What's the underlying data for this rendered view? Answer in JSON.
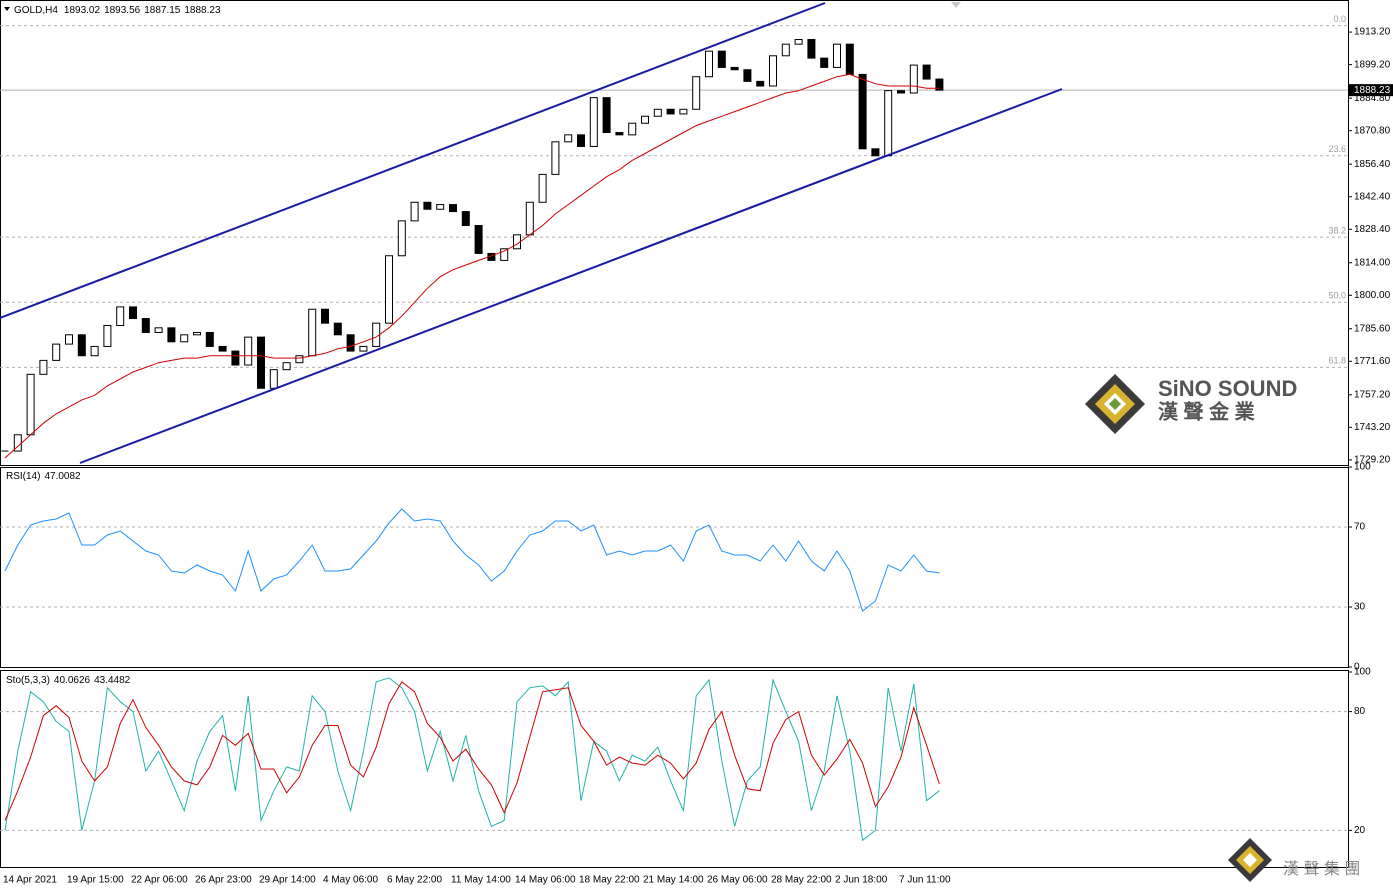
{
  "chart_data": [
    {
      "type": "candlestick",
      "symbol": "GOLD,H4",
      "ohlc": [
        1893.02,
        1893.56,
        1887.15,
        1888.23
      ],
      "color": "#000000",
      "ma_color": "#d00000",
      "values": [
        1733,
        1740,
        1766,
        1772,
        1779,
        1783,
        1774,
        1778,
        1787,
        1795,
        1790,
        1784,
        1786,
        1780,
        1783,
        1784,
        1778,
        1776,
        1770,
        1782,
        1760,
        1768,
        1771,
        1774,
        1794,
        1788,
        1783,
        1776,
        1778,
        1788,
        1817,
        1832,
        1840,
        1837,
        1839,
        1836,
        1830,
        1818,
        1815,
        1820,
        1826,
        1840,
        1852,
        1866,
        1869,
        1864,
        1885,
        1870,
        1869,
        1874,
        1877,
        1880,
        1878,
        1880,
        1894,
        1905,
        1898,
        1897,
        1892,
        1890,
        1903,
        1908,
        1910,
        1902,
        1898,
        1908,
        1895,
        1863,
        1860,
        1888,
        1887,
        1899,
        1893,
        1888.23
      ],
      "ma_values": [
        1730,
        1735,
        1740,
        1745,
        1749,
        1752,
        1755,
        1757,
        1761,
        1764,
        1767,
        1769,
        1771,
        1772,
        1773,
        1773,
        1774,
        1774,
        1774,
        1774,
        1774,
        1773,
        1773,
        1773,
        1774,
        1775,
        1777,
        1778,
        1780,
        1782,
        1786,
        1791,
        1797,
        1803,
        1808,
        1811,
        1813,
        1815,
        1817,
        1819,
        1822,
        1826,
        1830,
        1835,
        1839,
        1843,
        1847,
        1851,
        1854,
        1858,
        1861,
        1864,
        1867,
        1870,
        1873,
        1875,
        1877,
        1879,
        1881,
        1883,
        1885,
        1887,
        1888,
        1890,
        1892,
        1894,
        1895,
        1893,
        1891,
        1890,
        1890,
        1890,
        1889,
        1889
      ],
      "ylim": [
        1727,
        1927
      ],
      "yticks": [
        {
          "value": 1729.2,
          "label": "1729.20"
        },
        {
          "value": 1743.2,
          "label": "1743.20"
        },
        {
          "value": 1757.2,
          "label": "1757.20"
        },
        {
          "value": 1771.6,
          "label": "1771.60"
        },
        {
          "value": 1785.6,
          "label": "1785.60"
        },
        {
          "value": 1800,
          "label": "1800.00"
        },
        {
          "value": 1814,
          "label": "1814.00"
        },
        {
          "value": 1828.4,
          "label": "1828.40"
        },
        {
          "value": 1842.4,
          "label": "1842.40"
        },
        {
          "value": 1856.4,
          "label": "1856.40"
        },
        {
          "value": 1870.8,
          "label": "1870.80"
        },
        {
          "value": 1884.8,
          "label": "1884.80"
        },
        {
          "value": 1899.2,
          "label": "1899.20"
        },
        {
          "value": 1913.2,
          "label": "1913.20"
        }
      ],
      "fib_levels": [
        {
          "value": 1916,
          "label": "0.0"
        },
        {
          "value": 1860,
          "label": "23.6"
        },
        {
          "value": 1825,
          "label": "38.2"
        },
        {
          "value": 1797,
          "label": "50.0"
        },
        {
          "value": 1769,
          "label": "61.8"
        }
      ],
      "xlabels": [
        "14 Apr 2021",
        "19 Apr 15:00",
        "22 Apr 06:00",
        "26 Apr 23:00",
        "29 Apr 14:00",
        "4 May 06:00",
        "6 May 22:00",
        "11 May 14:00",
        "14 May 06:00",
        "18 May 22:00",
        "21 May 14:00",
        "26 May 06:00",
        "28 May 22:00",
        "2 Jun 18:00",
        "7 Jun 11:00"
      ]
    },
    {
      "type": "line",
      "title": "RSI(14)",
      "current": 47.0082,
      "color": "#1e90ff",
      "values": [
        48,
        61,
        71,
        73,
        74,
        77,
        61,
        61,
        66,
        68,
        63,
        58,
        56,
        48,
        47,
        51,
        48,
        46,
        38,
        58,
        38,
        44,
        46,
        53,
        61,
        48,
        48,
        49,
        56,
        63,
        72,
        79,
        73,
        74,
        73,
        63,
        56,
        51,
        43,
        48,
        58,
        66,
        68,
        73,
        73,
        68,
        71,
        56,
        58,
        56,
        58,
        58,
        61,
        53,
        68,
        71,
        58,
        56,
        56,
        53,
        61,
        53,
        63,
        53,
        48,
        58,
        48,
        28,
        33,
        51,
        48,
        56,
        48,
        47.0082
      ],
      "ylim": [
        0,
        100
      ],
      "yticks": [
        0,
        30,
        70,
        100
      ],
      "levels": [
        30,
        70
      ]
    },
    {
      "type": "line",
      "title": "Sto(5,3,3)",
      "current": [
        40.0626,
        43.4482
      ],
      "series": [
        {
          "color": "#20b2aa",
          "values": [
            20,
            60,
            90,
            85,
            75,
            70,
            20,
            45,
            92,
            85,
            80,
            50,
            60,
            45,
            30,
            55,
            70,
            78,
            40,
            88,
            25,
            40,
            52,
            50,
            88,
            80,
            50,
            30,
            60,
            95,
            97,
            92,
            80,
            50,
            70,
            45,
            68,
            40,
            22,
            25,
            85,
            92,
            93,
            88,
            95,
            35,
            65,
            60,
            45,
            58,
            55,
            62,
            45,
            30,
            88,
            96,
            55,
            22,
            45,
            52,
            96,
            80,
            65,
            30,
            50,
            88,
            60,
            15,
            20,
            92,
            60,
            94,
            35,
            40.0626
          ]
        },
        {
          "color": "#d00000",
          "values": [
            25,
            40,
            57,
            78,
            83,
            77,
            55,
            45,
            52,
            74,
            86,
            72,
            63,
            52,
            45,
            43,
            52,
            68,
            63,
            69,
            51,
            51,
            39,
            47,
            63,
            73,
            73,
            53,
            47,
            62,
            84,
            95,
            90,
            74,
            67,
            55,
            61,
            51,
            43,
            29,
            44,
            67,
            90,
            91,
            92,
            73,
            65,
            53,
            57,
            54,
            53,
            58,
            54,
            46,
            54,
            71,
            80,
            58,
            41,
            40,
            64,
            76,
            80,
            58,
            48,
            56,
            66,
            54,
            32,
            42,
            57,
            82,
            63,
            43.4482
          ]
        }
      ],
      "ylim": [
        0,
        100
      ],
      "yticks": [
        20,
        80,
        100
      ],
      "levels": [
        20,
        80
      ]
    }
  ],
  "watermark": {
    "name": "SiNO SOUND",
    "chinese": "漢 聲 金 業"
  },
  "footer_logo": "漢 聲 集 團"
}
